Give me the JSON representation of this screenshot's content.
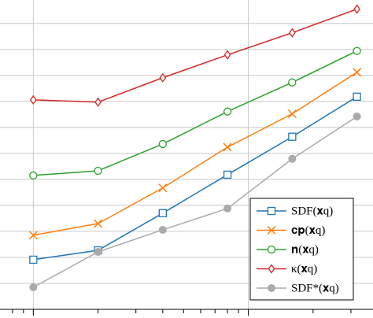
{
  "chart_data": {
    "type": "line",
    "xscale": "log",
    "grid": true,
    "x": [
      1,
      2,
      4,
      8,
      16,
      32
    ],
    "xlim": [
      0.7,
      38
    ],
    "xticks": [
      1,
      10
    ],
    "xminorticks": [
      0.8,
      0.9,
      2,
      3,
      4,
      5,
      6,
      7,
      8,
      9,
      20,
      30
    ],
    "ylim": [
      0,
      11.9
    ],
    "yticks": [
      1,
      2,
      3,
      4,
      5,
      6,
      7,
      8,
      9,
      10,
      11
    ],
    "legend": "lower right",
    "series": [
      {
        "name": "SDF(𝐱q)",
        "color": "#1f77b4",
        "marker": "square",
        "values": [
          1.91,
          2.27,
          3.7,
          5.18,
          6.64,
          8.18
        ]
      },
      {
        "name": "𝐜𝐩(𝐱q)",
        "color": "#ff7f0e",
        "marker": "x",
        "values": [
          2.85,
          3.3,
          4.67,
          6.24,
          7.52,
          9.12
        ]
      },
      {
        "name": "𝐧(𝐱q)",
        "color": "#2ca02c",
        "marker": "circle",
        "values": [
          5.15,
          5.33,
          6.36,
          7.61,
          8.73,
          9.94
        ]
      },
      {
        "name": "κ(𝐱q)",
        "color": "#d62728",
        "marker": "diamond",
        "values": [
          8.06,
          7.97,
          8.91,
          9.79,
          10.64,
          11.55
        ]
      },
      {
        "name": "SDF*(𝐱q)",
        "color": "#aaaaaa",
        "marker": "dot",
        "values": [
          0.85,
          2.21,
          3.06,
          3.88,
          5.79,
          7.42
        ]
      }
    ]
  }
}
